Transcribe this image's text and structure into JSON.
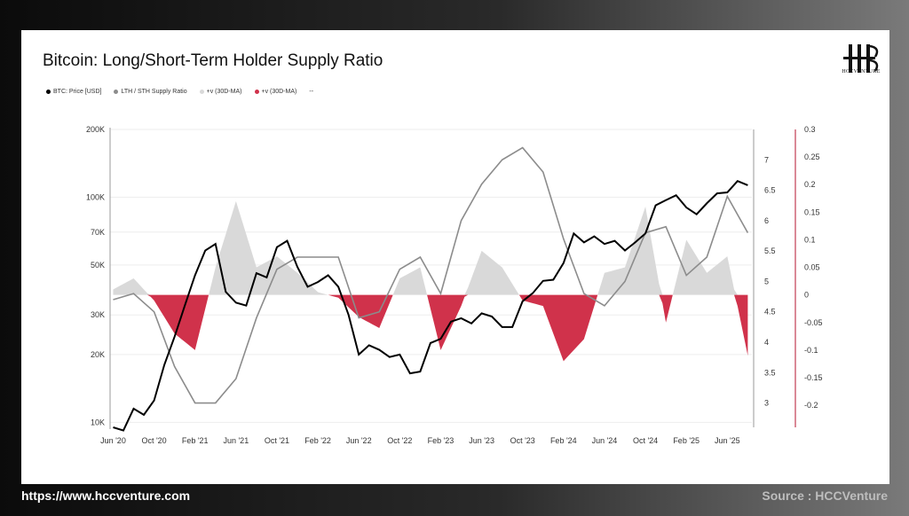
{
  "title": "Bitcoin: Long/Short-Term Holder Supply Ratio",
  "legend": [
    {
      "label": "BTC: Price [USD]",
      "color": "#000000"
    },
    {
      "label": "LTH / STH Supply Ratio",
      "color": "#8c8c8c"
    },
    {
      "label": "+v (30D-MA)",
      "color": "#d9d9d9"
    },
    {
      "label": "+v (30D-MA)",
      "color": "#d0324b"
    },
    {
      "label": "--",
      "color": ""
    }
  ],
  "logo_text": "HCCVENTURE",
  "footer": {
    "url": "https://www.hccventure.com",
    "source": "Source : HCCVenture"
  },
  "colors": {
    "price": "#000000",
    "ratio": "#8c8c8c",
    "positive": "#d9d9d9",
    "negative": "#d0324b"
  },
  "chart_data": {
    "type": "line",
    "x_range": [
      "2020-06",
      "2025-08"
    ],
    "x_ticks": [
      "Jun '20",
      "Oct '20",
      "Feb '21",
      "Jun '21",
      "Oct '21",
      "Feb '22",
      "Jun '22",
      "Oct '22",
      "Feb '23",
      "Jun '23",
      "Oct '23",
      "Feb '24",
      "Jun '24",
      "Oct '24",
      "Feb '25",
      "Jun '25"
    ],
    "y_left": {
      "scale": "log",
      "ticks": [
        "10K",
        "20K",
        "30K",
        "50K",
        "70K",
        "100K",
        "200K"
      ],
      "range": [
        9500,
        200000
      ]
    },
    "y_mid": {
      "ticks": [
        "3",
        "3.5",
        "4",
        "4.5",
        "5",
        "5.5",
        "6",
        "6.5",
        "7"
      ],
      "range": [
        2.6,
        7.5
      ]
    },
    "y_right": {
      "ticks": [
        "0.3",
        "0.25",
        "0.2",
        "0.15",
        "0.1",
        "0.05",
        "0",
        "-0.05",
        "-0.1",
        "-0.15",
        "-0.2"
      ],
      "range": [
        -0.24,
        0.3
      ]
    },
    "series": [
      {
        "name": "BTC: Price [USD]",
        "x": [
          "2020-06",
          "2020-07",
          "2020-08",
          "2020-09",
          "2020-10",
          "2020-11",
          "2020-12",
          "2021-01",
          "2021-02",
          "2021-03",
          "2021-04",
          "2021-05",
          "2021-06",
          "2021-07",
          "2021-08",
          "2021-09",
          "2021-10",
          "2021-11",
          "2021-12",
          "2022-01",
          "2022-02",
          "2022-03",
          "2022-04",
          "2022-05",
          "2022-06",
          "2022-07",
          "2022-08",
          "2022-09",
          "2022-10",
          "2022-11",
          "2022-12",
          "2023-01",
          "2023-02",
          "2023-03",
          "2023-04",
          "2023-05",
          "2023-06",
          "2023-07",
          "2023-08",
          "2023-09",
          "2023-10",
          "2023-11",
          "2023-12",
          "2024-01",
          "2024-02",
          "2024-03",
          "2024-04",
          "2024-05",
          "2024-06",
          "2024-07",
          "2024-08",
          "2024-09",
          "2024-10",
          "2024-11",
          "2024-12",
          "2025-01",
          "2025-02",
          "2025-03",
          "2025-04",
          "2025-05",
          "2025-06",
          "2025-07",
          "2025-08"
        ],
        "values": [
          9500,
          9200,
          11500,
          10800,
          12500,
          18000,
          24000,
          33000,
          45000,
          58000,
          62000,
          38000,
          34000,
          33000,
          46000,
          44000,
          60000,
          64000,
          49000,
          40000,
          42000,
          45000,
          40000,
          30000,
          20000,
          22000,
          21000,
          19500,
          20000,
          16500,
          16800,
          22500,
          23500,
          28000,
          29000,
          27500,
          30500,
          29500,
          26500,
          26500,
          34500,
          37500,
          42500,
          43000,
          51000,
          69000,
          63000,
          67000,
          62000,
          64000,
          58000,
          63000,
          69000,
          92000,
          97000,
          102000,
          90000,
          84000,
          94000,
          104000,
          105000,
          118000,
          113000
        ]
      },
      {
        "name": "LTH / STH Supply Ratio",
        "x": [
          "2020-06",
          "2020-08",
          "2020-10",
          "2020-12",
          "2021-02",
          "2021-04",
          "2021-06",
          "2021-08",
          "2021-10",
          "2021-12",
          "2022-02",
          "2022-04",
          "2022-06",
          "2022-08",
          "2022-10",
          "2022-12",
          "2023-02",
          "2023-04",
          "2023-06",
          "2023-08",
          "2023-10",
          "2023-12",
          "2024-02",
          "2024-04",
          "2024-06",
          "2024-08",
          "2024-10",
          "2024-12",
          "2025-02",
          "2025-04",
          "2025-06",
          "2025-08"
        ],
        "values": [
          4.7,
          4.8,
          4.5,
          3.6,
          3.0,
          3.0,
          3.4,
          4.4,
          5.2,
          5.4,
          5.4,
          5.4,
          4.4,
          4.5,
          5.2,
          5.4,
          4.8,
          6.0,
          6.6,
          7.0,
          7.2,
          6.8,
          5.7,
          4.8,
          4.6,
          5.0,
          5.8,
          5.9,
          5.1,
          5.4,
          6.4,
          5.8
        ]
      },
      {
        "name": "+v (30D-MA)",
        "x": [
          "2020-06",
          "2020-08",
          "2020-10",
          "2020-12",
          "2021-02",
          "2021-04",
          "2021-06",
          "2021-08",
          "2021-10",
          "2021-12",
          "2022-02",
          "2022-04",
          "2022-06",
          "2022-08",
          "2022-10",
          "2022-12",
          "2023-02",
          "2023-04",
          "2023-06",
          "2023-08",
          "2023-10",
          "2023-12",
          "2024-02",
          "2024-04",
          "2024-06",
          "2024-08",
          "2024-10",
          "2024-12",
          "2025-02",
          "2025-04",
          "2025-06",
          "2025-08"
        ],
        "values": [
          0.01,
          0.03,
          -0.01,
          -0.07,
          -0.1,
          0.05,
          0.17,
          0.05,
          0.07,
          0.04,
          0.005,
          -0.005,
          -0.04,
          -0.06,
          0.03,
          0.05,
          -0.1,
          -0.02,
          0.08,
          0.05,
          -0.01,
          -0.02,
          -0.12,
          -0.08,
          0.04,
          0.05,
          0.16,
          -0.05,
          0.1,
          0.04,
          0.07,
          -0.11
        ]
      }
    ]
  }
}
